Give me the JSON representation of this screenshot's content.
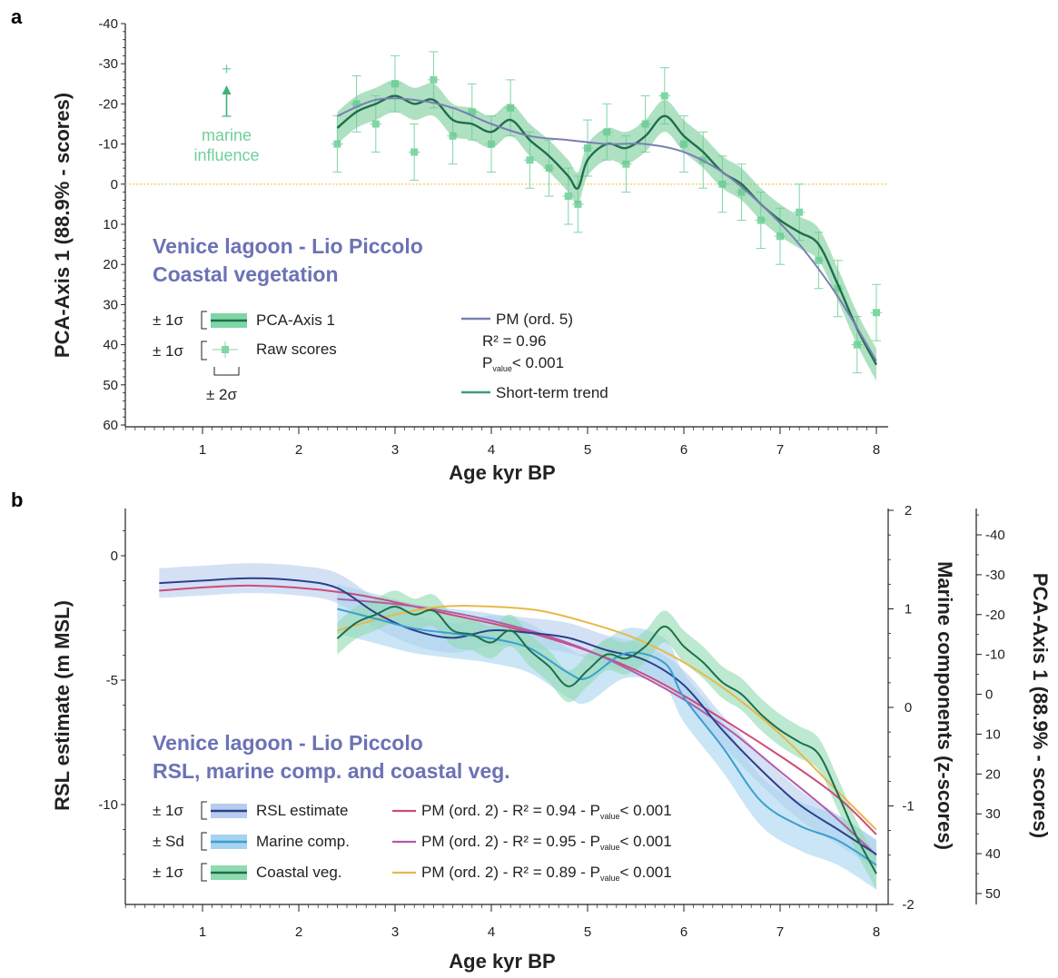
{
  "chart_data": [
    {
      "panel": "a",
      "type": "line",
      "title": [
        "Venice lagoon - Lio Piccolo",
        "Coastal vegetation"
      ],
      "xlabel": "Age kyr BP",
      "ylabel": "PCA-Axis 1 (88.9% - scores)",
      "xlim": [
        0.2,
        8.1
      ],
      "ylim": [
        60,
        -40
      ],
      "y_inverted": true,
      "xticks": [
        "1",
        "2",
        "3",
        "4",
        "5",
        "6",
        "7",
        "8"
      ],
      "yticks": [
        "-40",
        "-30",
        "-20",
        "-10",
        "0",
        "10",
        "20",
        "30",
        "40",
        "50",
        "60"
      ],
      "reference_line": {
        "y": 0,
        "style": "dotted",
        "color": "#e8d36a"
      },
      "annotation": {
        "text": [
          "marine",
          "influence"
        ],
        "x": 1.25,
        "symbol": "+"
      },
      "legend": {
        "left": [
          {
            "prefix": "± 1σ",
            "label": "PCA-Axis 1"
          },
          {
            "prefix": "± 1σ",
            "label": "Raw scores",
            "sub": "± 2σ"
          }
        ],
        "right": [
          {
            "label": "PM (ord. 5)"
          },
          {
            "label": "R² = 0.96"
          },
          {
            "label": "P",
            "subscript": "value",
            "suffix": "< 0.001"
          },
          {
            "label": "Short-term trend"
          }
        ]
      },
      "series": [
        {
          "name": "PCA-Axis 1",
          "color": "#1f6e4c",
          "x": [
            2.4,
            2.6,
            2.8,
            3.0,
            3.2,
            3.4,
            3.6,
            3.8,
            4.0,
            4.2,
            4.4,
            4.6,
            4.8,
            4.9,
            5.0,
            5.2,
            5.4,
            5.6,
            5.8,
            6.0,
            6.2,
            6.4,
            6.6,
            6.8,
            7.0,
            7.2,
            7.4,
            7.6,
            7.8,
            8.0
          ],
          "y": [
            -14,
            -18,
            -20,
            -22,
            -20,
            -21,
            -16,
            -15,
            -13,
            -16,
            -11,
            -7,
            -2,
            1,
            -6,
            -10,
            -9,
            -12,
            -17,
            -12,
            -8,
            -3,
            0,
            5,
            9,
            12,
            15,
            25,
            36,
            45
          ],
          "band": 4
        },
        {
          "name": "PM (ord. 5)",
          "color": "#7b7fb3",
          "x": [
            2.4,
            2.8,
            3.2,
            3.6,
            4.0,
            4.4,
            4.8,
            5.2,
            5.6,
            6.0,
            6.4,
            6.8,
            7.2,
            7.6,
            8.0
          ],
          "y": [
            -17,
            -21,
            -21,
            -19,
            -15,
            -12,
            -11,
            -10,
            -10,
            -8,
            -3,
            5,
            15,
            28,
            44
          ]
        },
        {
          "name": "Raw scores",
          "color": "#7fd6a5",
          "x": [
            2.4,
            2.6,
            2.8,
            3.0,
            3.2,
            3.4,
            3.6,
            3.8,
            4.0,
            4.2,
            4.4,
            4.6,
            4.8,
            4.9,
            5.0,
            5.2,
            5.4,
            5.6,
            5.8,
            6.0,
            6.2,
            6.4,
            6.6,
            6.8,
            7.0,
            7.2,
            7.4,
            7.6,
            7.8,
            8.0
          ],
          "y": [
            -10,
            -20,
            -15,
            -25,
            -8,
            -26,
            -12,
            -18,
            -10,
            -19,
            -6,
            -4,
            3,
            5,
            -9,
            -13,
            -5,
            -15,
            -22,
            -10,
            -6,
            0,
            2,
            9,
            13,
            7,
            19,
            26,
            40,
            32
          ],
          "err": 7,
          "xerr": 0.06
        }
      ]
    },
    {
      "panel": "b",
      "type": "line",
      "title": [
        "Venice lagoon - Lio Piccolo",
        "RSL, marine comp. and coastal veg."
      ],
      "xlabel": "Age kyr BP",
      "ylabel_left": "RSL estimate (m MSL)",
      "ylabel_right1": "Marine components (z-scores)",
      "ylabel_right2": "PCA-Axis 1 (88.9% - scores)",
      "xlim": [
        0.2,
        8.1
      ],
      "ylim_left": [
        -13.5,
        2
      ],
      "ylim_right1": [
        -2,
        2
      ],
      "ylim_right2": [
        52,
        -46
      ],
      "xticks": [
        "1",
        "2",
        "3",
        "4",
        "5",
        "6",
        "7",
        "8"
      ],
      "yticks_left": [
        "0",
        "-5",
        "-10"
      ],
      "yticks_right1": [
        "2",
        "1",
        "0",
        "-1",
        "-2"
      ],
      "yticks_right2": [
        "-40",
        "-30",
        "-20",
        "-10",
        "0",
        "10",
        "20",
        "30",
        "40",
        "50"
      ],
      "legend": [
        {
          "prefix": "± 1σ",
          "label": "RSL estimate",
          "pm": "PM (ord. 2) - R² = 0.94 - P",
          "sub": "value",
          "tail": "< 0.001",
          "pm_color": "#d04a7a"
        },
        {
          "prefix": "± Sd",
          "label": "Marine comp.",
          "pm": "PM (ord. 2) - R² = 0.95 - P",
          "sub": "value",
          "tail": "< 0.001",
          "pm_color": "#b35aa8"
        },
        {
          "prefix": "± 1σ",
          "label": "Coastal veg.",
          "pm": "PM (ord. 2) - R² = 0.89 - P",
          "sub": "value",
          "tail": "< 0.001",
          "pm_color": "#e8b84a"
        }
      ],
      "series": [
        {
          "name": "RSL estimate",
          "axis": "left",
          "color": "#2d3f8c",
          "band_color": "#b7cdee",
          "x": [
            0.55,
            1.0,
            1.5,
            2.0,
            2.4,
            2.8,
            3.2,
            3.6,
            4.0,
            4.4,
            4.8,
            5.2,
            5.6,
            6.0,
            6.4,
            6.8,
            7.2,
            7.6,
            8.0
          ],
          "y": [
            -1.1,
            -1.0,
            -0.9,
            -1.0,
            -1.3,
            -2.3,
            -3.0,
            -3.3,
            -3.0,
            -3.1,
            -3.3,
            -3.8,
            -4.2,
            -5.2,
            -7.0,
            -8.6,
            -10.0,
            -11.0,
            -12.0
          ],
          "band": 0.6
        },
        {
          "name": "Marine comp.",
          "axis": "right1",
          "color": "#3a9fd0",
          "band_color": "#a6d3ef",
          "x": [
            2.4,
            2.8,
            3.2,
            3.6,
            4.0,
            4.4,
            4.8,
            5.0,
            5.4,
            5.8,
            6.0,
            6.4,
            6.8,
            7.2,
            7.6,
            8.0
          ],
          "y": [
            1.0,
            0.9,
            0.8,
            0.75,
            0.7,
            0.6,
            0.35,
            0.3,
            0.55,
            0.45,
            0.1,
            -0.4,
            -0.95,
            -1.2,
            -1.35,
            -1.6
          ],
          "band": 0.25
        },
        {
          "name": "Coastal veg.",
          "axis": "right2",
          "color": "#1f6e4c",
          "band_color": "#8fdbb0",
          "x": [
            2.4,
            2.6,
            2.8,
            3.0,
            3.2,
            3.4,
            3.6,
            3.8,
            4.0,
            4.2,
            4.4,
            4.6,
            4.8,
            5.0,
            5.2,
            5.4,
            5.6,
            5.8,
            6.0,
            6.2,
            6.4,
            6.6,
            6.8,
            7.0,
            7.2,
            7.4,
            7.6,
            7.8,
            8.0
          ],
          "y": [
            -14,
            -18,
            -20,
            -22,
            -20,
            -21,
            -16,
            -15,
            -13,
            -16,
            -11,
            -7,
            -2,
            -6,
            -10,
            -9,
            -12,
            -17,
            -12,
            -8,
            -3,
            0,
            5,
            9,
            12,
            15,
            25,
            36,
            45
          ],
          "band": 4
        },
        {
          "name": "PM RSL",
          "axis": "left",
          "color": "#d04a7a",
          "x": [
            0.55,
            1.5,
            2.5,
            3.5,
            4.5,
            5.5,
            6.5,
            7.5,
            8.0
          ],
          "y": [
            -1.4,
            -1.2,
            -1.5,
            -2.3,
            -3.2,
            -4.6,
            -6.8,
            -9.4,
            -11.2
          ]
        },
        {
          "name": "PM Marine",
          "axis": "right1",
          "color": "#b35aa8",
          "x": [
            2.4,
            3.0,
            3.5,
            4.0,
            4.5,
            5.0,
            5.5,
            6.0,
            6.5,
            7.0,
            7.5,
            8.0
          ],
          "y": [
            1.1,
            1.05,
            0.98,
            0.88,
            0.75,
            0.58,
            0.35,
            0.08,
            -0.25,
            -0.65,
            -1.05,
            -1.5
          ]
        },
        {
          "name": "PM Coastal",
          "axis": "right2",
          "color": "#e8b84a",
          "x": [
            2.4,
            3.0,
            3.5,
            4.0,
            4.5,
            5.0,
            5.5,
            6.0,
            6.5,
            7.0,
            7.5,
            8.0
          ],
          "y": [
            -16,
            -20,
            -22,
            -22,
            -21,
            -18,
            -14,
            -8,
            0,
            10,
            22,
            34
          ]
        }
      ]
    }
  ]
}
